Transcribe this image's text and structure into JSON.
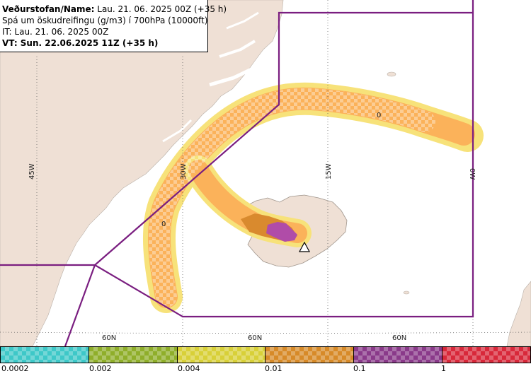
{
  "header": {
    "line1_bold": "Veðurstofan/Name:",
    "line1_rest": " Lau. 21. 06. 2025 00Z (+35 h)",
    "line2": "Spá um öskudreifingu (g/m3) í 700hPa (10000ft)",
    "line3": "IT: Lau. 21. 06. 2025 00Z",
    "line4": "VT: Sun. 22.06.2025 11Z (+35 h)"
  },
  "map": {
    "longitude_labels": [
      "45W",
      "30W",
      "15W",
      "0W"
    ],
    "latitude_labels": [
      "60N",
      "60N",
      "60N"
    ],
    "zero_markers": [
      "0",
      "0"
    ],
    "colors": {
      "land": "#efe0d5",
      "sea": "#ffffff",
      "boundary": "#7a1e80",
      "ash_light": "#fbb25a",
      "ash_edge": "#f7e27a",
      "ash_fringe": "#9fe5e8",
      "ash_mid": "#d98a2e",
      "ash_high": "#b04ca8"
    }
  },
  "legend": {
    "labels": [
      "0.0002",
      "0.002",
      "0.004",
      "0.01",
      "0.1",
      "1"
    ],
    "colors": [
      "#3ec8c8",
      "#8fae2a",
      "#d8d038",
      "#d78a28",
      "#8a3a8a",
      "#d8283a"
    ]
  }
}
